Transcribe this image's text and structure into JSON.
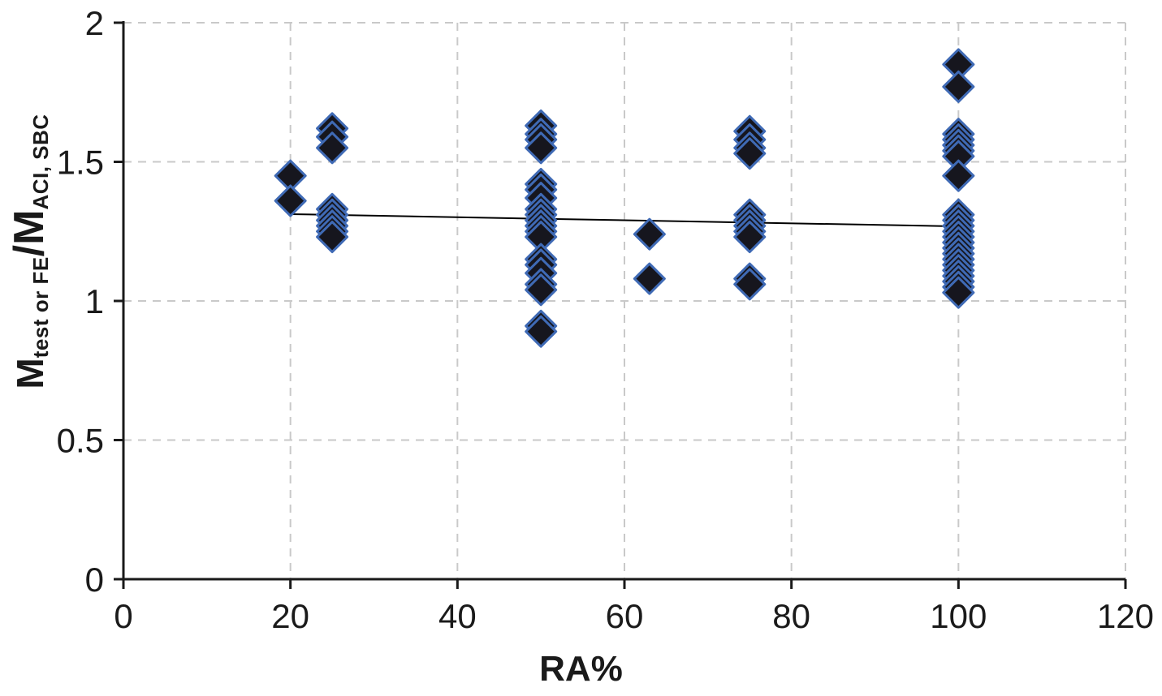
{
  "chart_data": {
    "type": "scatter",
    "title": "",
    "xlabel": "RA%",
    "ylabel_parts": {
      "m1": "M",
      "sub1": "test or FE",
      "m2": "/M",
      "sub2": "ACI, SBC"
    },
    "xlim": [
      0,
      120
    ],
    "ylim": [
      0,
      2
    ],
    "x_ticks": [
      0,
      20,
      40,
      60,
      80,
      100,
      120
    ],
    "y_ticks": [
      0,
      0.5,
      1,
      1.5,
      2
    ],
    "grid": "dashed",
    "legend": "none",
    "marker": {
      "shape": "diamond",
      "fill": "#16161e",
      "stroke": "#3f6ab5",
      "size": 18.5,
      "stroke_width": 3
    },
    "trend_line": {
      "x1": 20,
      "y1": 1.312,
      "x2": 100,
      "y2": 1.268,
      "color": "#000000",
      "width": 2
    },
    "points": [
      [
        20,
        1.45
      ],
      [
        20,
        1.36
      ],
      [
        25,
        1.62
      ],
      [
        25,
        1.59
      ],
      [
        25,
        1.55
      ],
      [
        25,
        1.33
      ],
      [
        25,
        1.31
      ],
      [
        25,
        1.29
      ],
      [
        25,
        1.27
      ],
      [
        25,
        1.25
      ],
      [
        25,
        1.23
      ],
      [
        50,
        1.63
      ],
      [
        50,
        1.6
      ],
      [
        50,
        1.58
      ],
      [
        50,
        1.55
      ],
      [
        50,
        1.42
      ],
      [
        50,
        1.4
      ],
      [
        50,
        1.37
      ],
      [
        50,
        1.33
      ],
      [
        50,
        1.31
      ],
      [
        50,
        1.29
      ],
      [
        50,
        1.27
      ],
      [
        50,
        1.25
      ],
      [
        50,
        1.23
      ],
      [
        50,
        1.15
      ],
      [
        50,
        1.13
      ],
      [
        50,
        1.1
      ],
      [
        50,
        1.06
      ],
      [
        50,
        1.04
      ],
      [
        50,
        0.91
      ],
      [
        50,
        0.89
      ],
      [
        63,
        1.24
      ],
      [
        63,
        1.08
      ],
      [
        75,
        1.61
      ],
      [
        75,
        1.58
      ],
      [
        75,
        1.55
      ],
      [
        75,
        1.53
      ],
      [
        75,
        1.31
      ],
      [
        75,
        1.29
      ],
      [
        75,
        1.27
      ],
      [
        75,
        1.25
      ],
      [
        75,
        1.23
      ],
      [
        75,
        1.08
      ],
      [
        75,
        1.06
      ],
      [
        100,
        1.85
      ],
      [
        100,
        1.77
      ],
      [
        100,
        1.6
      ],
      [
        100,
        1.58
      ],
      [
        100,
        1.56
      ],
      [
        100,
        1.54
      ],
      [
        100,
        1.52
      ],
      [
        100,
        1.45
      ],
      [
        100,
        1.31
      ],
      [
        100,
        1.29
      ],
      [
        100,
        1.27
      ],
      [
        100,
        1.25
      ],
      [
        100,
        1.23
      ],
      [
        100,
        1.21
      ],
      [
        100,
        1.19
      ],
      [
        100,
        1.17
      ],
      [
        100,
        1.15
      ],
      [
        100,
        1.13
      ],
      [
        100,
        1.11
      ],
      [
        100,
        1.09
      ],
      [
        100,
        1.07
      ],
      [
        100,
        1.05
      ],
      [
        100,
        1.03
      ]
    ],
    "colors": {
      "grid": "#c9c9c9",
      "axis": "#1a1a1a",
      "tick_text": "#1a1a1a"
    }
  }
}
